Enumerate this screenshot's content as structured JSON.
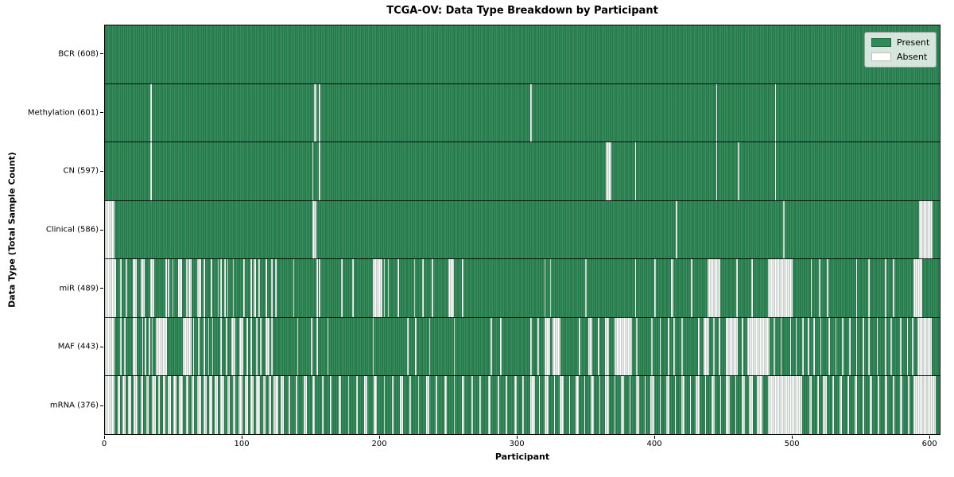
{
  "title": "TCGA-OV: Data Type Breakdown by Participant",
  "chart_data": {
    "type": "heatmap",
    "title": "TCGA-OV: Data Type Breakdown by Participant",
    "xlabel": "Participant",
    "ylabel": "Data Type (Total Sample Count)",
    "x_ticks": [
      0,
      100,
      200,
      300,
      400,
      500,
      600
    ],
    "n_participants": 608,
    "grid": false,
    "legend": {
      "position": "upper right",
      "entries": [
        {
          "label": "Present",
          "color": "#2e8b57"
        },
        {
          "label": "Absent",
          "color": "#ffffff"
        }
      ]
    },
    "colors": {
      "present": "#2e8b57",
      "absent": "#ffffff",
      "separator": "#000000",
      "background": "#ffffff"
    },
    "rows": [
      {
        "name": "bcr",
        "label": "BCR (608)",
        "present_count": 608,
        "absent_intervals": []
      },
      {
        "name": "methylation",
        "label": "Methylation (601)",
        "present_count": 601,
        "absent_intervals": [
          [
            33,
            33
          ],
          [
            152,
            153
          ],
          [
            156,
            156
          ],
          [
            310,
            310
          ],
          [
            445,
            445
          ],
          [
            488,
            488
          ]
        ]
      },
      {
        "name": "cn",
        "label": "CN (597)",
        "present_count": 597,
        "absent_intervals": [
          [
            33,
            33
          ],
          [
            151,
            151
          ],
          [
            156,
            156
          ],
          [
            365,
            368
          ],
          [
            386,
            386
          ],
          [
            445,
            445
          ],
          [
            461,
            461
          ],
          [
            488,
            488
          ]
        ]
      },
      {
        "name": "clinical",
        "label": "Clinical (586)",
        "present_count": 586,
        "absent_intervals": [
          [
            0,
            6
          ],
          [
            151,
            153
          ],
          [
            416,
            416
          ],
          [
            494,
            494
          ],
          [
            593,
            602
          ]
        ]
      },
      {
        "name": "mir",
        "label": "miR (489)",
        "present_count": 489,
        "absent_intervals": [
          [
            0,
            7
          ],
          [
            11,
            11
          ],
          [
            15,
            15
          ],
          [
            20,
            22
          ],
          [
            26,
            28
          ],
          [
            33,
            35
          ],
          [
            44,
            44
          ],
          [
            46,
            46
          ],
          [
            49,
            49
          ],
          [
            53,
            55
          ],
          [
            59,
            59
          ],
          [
            61,
            62
          ],
          [
            67,
            69
          ],
          [
            72,
            72
          ],
          [
            77,
            77
          ],
          [
            82,
            82
          ],
          [
            84,
            84
          ],
          [
            87,
            87
          ],
          [
            89,
            89
          ],
          [
            93,
            93
          ],
          [
            101,
            101
          ],
          [
            106,
            106
          ],
          [
            108,
            109
          ],
          [
            112,
            112
          ],
          [
            117,
            117
          ],
          [
            121,
            121
          ],
          [
            124,
            124
          ],
          [
            137,
            137
          ],
          [
            154,
            154
          ],
          [
            156,
            156
          ],
          [
            172,
            172
          ],
          [
            180,
            180
          ],
          [
            195,
            201
          ],
          [
            203,
            203
          ],
          [
            206,
            206
          ],
          [
            213,
            213
          ],
          [
            225,
            225
          ],
          [
            231,
            231
          ],
          [
            238,
            238
          ],
          [
            250,
            253
          ],
          [
            260,
            260
          ],
          [
            320,
            320
          ],
          [
            324,
            324
          ],
          [
            350,
            350
          ],
          [
            386,
            386
          ],
          [
            400,
            400
          ],
          [
            412,
            413
          ],
          [
            427,
            427
          ],
          [
            439,
            447
          ],
          [
            460,
            460
          ],
          [
            471,
            471
          ],
          [
            483,
            500
          ],
          [
            514,
            514
          ],
          [
            520,
            520
          ],
          [
            526,
            526
          ],
          [
            547,
            547
          ],
          [
            556,
            556
          ],
          [
            568,
            568
          ],
          [
            574,
            574
          ],
          [
            589,
            594
          ]
        ]
      },
      {
        "name": "maf",
        "label": "MAF (443)",
        "present_count": 443,
        "absent_intervals": [
          [
            0,
            6
          ],
          [
            11,
            11
          ],
          [
            14,
            14
          ],
          [
            20,
            22
          ],
          [
            27,
            27
          ],
          [
            29,
            29
          ],
          [
            32,
            32
          ],
          [
            34,
            34
          ],
          [
            37,
            44
          ],
          [
            57,
            62
          ],
          [
            64,
            64
          ],
          [
            68,
            68
          ],
          [
            72,
            72
          ],
          [
            75,
            75
          ],
          [
            78,
            78
          ],
          [
            84,
            84
          ],
          [
            88,
            88
          ],
          [
            92,
            94
          ],
          [
            98,
            100
          ],
          [
            103,
            103
          ],
          [
            106,
            106
          ],
          [
            110,
            110
          ],
          [
            113,
            113
          ],
          [
            117,
            119
          ],
          [
            121,
            121
          ],
          [
            140,
            140
          ],
          [
            150,
            150
          ],
          [
            154,
            154
          ],
          [
            162,
            162
          ],
          [
            195,
            195
          ],
          [
            220,
            220
          ],
          [
            226,
            226
          ],
          [
            236,
            236
          ],
          [
            254,
            254
          ],
          [
            281,
            281
          ],
          [
            288,
            288
          ],
          [
            310,
            310
          ],
          [
            315,
            315
          ],
          [
            320,
            323
          ],
          [
            326,
            331
          ],
          [
            345,
            345
          ],
          [
            352,
            354
          ],
          [
            359,
            359
          ],
          [
            364,
            366
          ],
          [
            371,
            383
          ],
          [
            387,
            387
          ],
          [
            398,
            398
          ],
          [
            404,
            404
          ],
          [
            410,
            410
          ],
          [
            414,
            414
          ],
          [
            420,
            420
          ],
          [
            432,
            432
          ],
          [
            436,
            439
          ],
          [
            443,
            443
          ],
          [
            447,
            447
          ],
          [
            452,
            460
          ],
          [
            464,
            464
          ],
          [
            468,
            483
          ],
          [
            487,
            487
          ],
          [
            492,
            492
          ],
          [
            499,
            499
          ],
          [
            503,
            503
          ],
          [
            508,
            508
          ],
          [
            512,
            512
          ],
          [
            516,
            516
          ],
          [
            521,
            521
          ],
          [
            527,
            527
          ],
          [
            532,
            532
          ],
          [
            537,
            537
          ],
          [
            542,
            542
          ],
          [
            547,
            547
          ],
          [
            552,
            552
          ],
          [
            556,
            556
          ],
          [
            562,
            562
          ],
          [
            568,
            568
          ],
          [
            572,
            572
          ],
          [
            579,
            579
          ],
          [
            584,
            584
          ],
          [
            588,
            588
          ],
          [
            592,
            601
          ]
        ]
      },
      {
        "name": "mrna",
        "label": "mRNA (376)",
        "present_count": 376,
        "absent_intervals": [
          [
            0,
            6
          ],
          [
            9,
            10
          ],
          [
            13,
            14
          ],
          [
            17,
            18
          ],
          [
            21,
            23
          ],
          [
            26,
            27
          ],
          [
            30,
            31
          ],
          [
            34,
            36
          ],
          [
            39,
            39
          ],
          [
            42,
            43
          ],
          [
            46,
            47
          ],
          [
            50,
            51
          ],
          [
            54,
            56
          ],
          [
            59,
            60
          ],
          [
            63,
            64
          ],
          [
            67,
            69
          ],
          [
            72,
            73
          ],
          [
            76,
            77
          ],
          [
            80,
            81
          ],
          [
            84,
            86
          ],
          [
            89,
            90
          ],
          [
            93,
            94
          ],
          [
            97,
            99
          ],
          [
            102,
            103
          ],
          [
            106,
            107
          ],
          [
            110,
            112
          ],
          [
            115,
            116
          ],
          [
            119,
            120
          ],
          [
            123,
            125
          ],
          [
            128,
            129
          ],
          [
            134,
            134
          ],
          [
            139,
            139
          ],
          [
            145,
            146
          ],
          [
            151,
            152
          ],
          [
            158,
            158
          ],
          [
            164,
            164
          ],
          [
            170,
            171
          ],
          [
            177,
            177
          ],
          [
            183,
            183
          ],
          [
            189,
            190
          ],
          [
            196,
            197
          ],
          [
            203,
            203
          ],
          [
            209,
            209
          ],
          [
            215,
            216
          ],
          [
            222,
            222
          ],
          [
            228,
            228
          ],
          [
            234,
            235
          ],
          [
            241,
            241
          ],
          [
            247,
            248
          ],
          [
            254,
            254
          ],
          [
            260,
            261
          ],
          [
            267,
            267
          ],
          [
            273,
            273
          ],
          [
            279,
            280
          ],
          [
            286,
            286
          ],
          [
            292,
            292
          ],
          [
            298,
            299
          ],
          [
            304,
            304
          ],
          [
            310,
            312
          ],
          [
            316,
            316
          ],
          [
            320,
            322
          ],
          [
            327,
            327
          ],
          [
            331,
            333
          ],
          [
            338,
            338
          ],
          [
            343,
            344
          ],
          [
            349,
            349
          ],
          [
            354,
            355
          ],
          [
            360,
            360
          ],
          [
            364,
            366
          ],
          [
            371,
            371
          ],
          [
            376,
            377
          ],
          [
            382,
            382
          ],
          [
            387,
            388
          ],
          [
            393,
            393
          ],
          [
            397,
            399
          ],
          [
            404,
            404
          ],
          [
            409,
            410
          ],
          [
            415,
            415
          ],
          [
            420,
            421
          ],
          [
            426,
            426
          ],
          [
            430,
            432
          ],
          [
            437,
            437
          ],
          [
            442,
            443
          ],
          [
            448,
            448
          ],
          [
            452,
            454
          ],
          [
            459,
            459
          ],
          [
            464,
            465
          ],
          [
            469,
            471
          ],
          [
            475,
            478
          ],
          [
            483,
            507
          ],
          [
            513,
            514
          ],
          [
            519,
            519
          ],
          [
            523,
            525
          ],
          [
            530,
            530
          ],
          [
            535,
            536
          ],
          [
            541,
            541
          ],
          [
            546,
            547
          ],
          [
            552,
            552
          ],
          [
            557,
            558
          ],
          [
            563,
            563
          ],
          [
            568,
            569
          ],
          [
            574,
            574
          ],
          [
            579,
            580
          ],
          [
            585,
            585
          ],
          [
            589,
            604
          ]
        ]
      }
    ]
  }
}
